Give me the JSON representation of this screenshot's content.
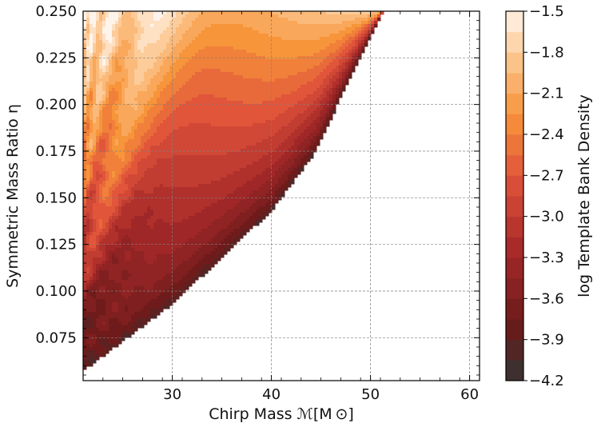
{
  "chart_data": {
    "type": "heatmap",
    "subtype": "filled-contour",
    "xlabel": "Chirp Mass ℳ[M ⊙]",
    "ylabel": "Symmetric Mass Ratio η",
    "colorbar_label": "log Template Bank Density",
    "xlim": [
      21,
      61
    ],
    "ylim": [
      0.052,
      0.25
    ],
    "x_ticks": [
      30,
      40,
      50,
      60
    ],
    "x_tick_labels": [
      "30",
      "40",
      "50",
      "60"
    ],
    "y_ticks": [
      0.075,
      0.1,
      0.125,
      0.15,
      0.175,
      0.2,
      0.225,
      0.25
    ],
    "y_tick_labels": [
      "0.075",
      "0.100",
      "0.125",
      "0.150",
      "0.175",
      "0.200",
      "0.225",
      "0.250"
    ],
    "colorbar_range": [
      -4.2,
      -1.5
    ],
    "colorbar_ticks": [
      -1.5,
      -1.8,
      -2.1,
      -2.4,
      -2.7,
      -3.0,
      -3.3,
      -3.6,
      -3.9,
      -4.2
    ],
    "colorbar_tick_labels": [
      "−1.5",
      "−1.8",
      "−2.1",
      "−2.4",
      "−2.7",
      "−3.0",
      "−3.3",
      "−3.6",
      "−3.9",
      "−4.2"
    ],
    "colormap": "gist_heat_r (dark brown to white)",
    "grid": true,
    "grid_style": "dashed gray",
    "data_region_boundary": [
      {
        "x": 21.0,
        "y": 0.057
      },
      {
        "x": 30.0,
        "y": 0.093
      },
      {
        "x": 40.0,
        "y": 0.143
      },
      {
        "x": 44.5,
        "y": 0.175
      },
      {
        "x": 48.0,
        "y": 0.215
      },
      {
        "x": 51.3,
        "y": 0.25
      }
    ],
    "trend": "density increases toward high η and low chirp mass; diagonal striped bands along constant-mass-ratio lines; oscillatory bubble pattern near low chirp mass"
  }
}
